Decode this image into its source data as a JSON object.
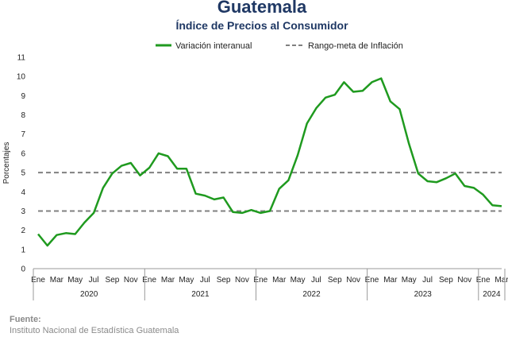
{
  "chart_data": {
    "type": "line",
    "title": "Guatemala",
    "subtitle": "Índice de Precios al Consumidor",
    "ylabel": "Porcentajes",
    "ylim": [
      0,
      11
    ],
    "yticks": [
      0,
      1,
      2,
      3,
      4,
      5,
      6,
      7,
      8,
      9,
      10,
      11
    ],
    "month_labels": [
      "Ene",
      "Mar",
      "May",
      "Jul",
      "Sep",
      "Nov"
    ],
    "year_labels": [
      "2020",
      "2021",
      "2022",
      "2023",
      "2024"
    ],
    "year_month_labels_2024": [
      "Ene",
      "Mar"
    ],
    "grid": false,
    "legend_position": "top",
    "series": [
      {
        "name": "Variación interanual",
        "color": "#1f9a1f",
        "style": "solid",
        "values": [
          1.8,
          1.2,
          1.75,
          1.85,
          1.8,
          2.4,
          2.9,
          4.2,
          4.95,
          5.35,
          5.5,
          4.85,
          5.25,
          6.0,
          5.85,
          5.2,
          5.2,
          3.9,
          3.8,
          3.6,
          3.7,
          2.95,
          2.9,
          3.05,
          2.9,
          3.0,
          4.15,
          4.6,
          5.9,
          7.55,
          8.35,
          8.9,
          9.05,
          9.7,
          9.2,
          9.25,
          9.7,
          9.9,
          8.7,
          8.3,
          6.5,
          4.95,
          4.55,
          4.5,
          4.7,
          4.95,
          4.3,
          4.2,
          3.85,
          3.3,
          3.25
        ]
      },
      {
        "name": "Rango-meta de Inflación",
        "color": "#808080",
        "style": "dashed",
        "bands": [
          3,
          5
        ]
      }
    ]
  },
  "source": {
    "label": "Fuente:",
    "text": "Instituto Nacional de Estadística Guatemala"
  }
}
